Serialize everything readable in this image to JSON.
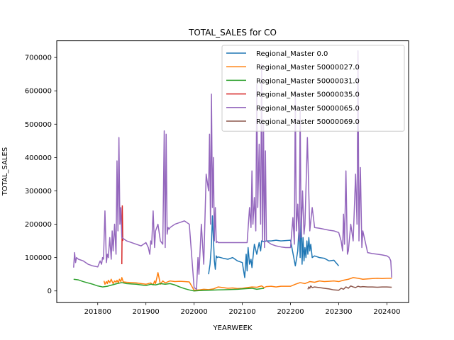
{
  "chart_data": {
    "type": "line",
    "title": "TOTAL_SALES for CO",
    "xlabel": "YEARWEEK",
    "ylabel": "TOTAL_SALES",
    "xlim": [
      201715,
      202445
    ],
    "ylim": [
      -35000,
      750000
    ],
    "xticks": [
      201800,
      201900,
      202000,
      202100,
      202200,
      202300,
      202400
    ],
    "yticks": [
      0,
      100000,
      200000,
      300000,
      400000,
      500000,
      600000,
      700000
    ],
    "grid": false,
    "legend_position": "top-right",
    "series": [
      {
        "name": "Regional_Master 0.0",
        "color": "#1f77b4",
        "x": [
          202030,
          202033,
          202036,
          202038,
          202040,
          202042,
          202044,
          202046,
          202048,
          202050,
          202060,
          202070,
          202080,
          202090,
          202100,
          202105,
          202108,
          202110,
          202112,
          202115,
          202118,
          202120,
          202125,
          202130,
          202135,
          202138,
          202140,
          202145,
          202150,
          202160,
          202170,
          202180,
          202190,
          202200,
          202210,
          202215,
          202218,
          202220,
          202222,
          202224,
          202226,
          202228,
          202230,
          202232,
          202234,
          202236,
          202238,
          202240,
          202242,
          202245,
          202250,
          202260,
          202270,
          202280,
          202290,
          202300
        ],
        "values": [
          50000,
          80000,
          140000,
          225000,
          160000,
          90000,
          65000,
          105000,
          100000,
          102000,
          98000,
          95000,
          100000,
          90000,
          85000,
          40000,
          110000,
          60000,
          130000,
          80000,
          95000,
          70000,
          140000,
          110000,
          145000,
          120000,
          150000,
          148000,
          150000,
          150000,
          152000,
          150000,
          151000,
          152000,
          75000,
          120000,
          200000,
          100000,
          250000,
          80000,
          160000,
          90000,
          130000,
          100000,
          150000,
          110000,
          160000,
          120000,
          140000,
          100000,
          105000,
          100000,
          98000,
          90000,
          92000,
          75000
        ]
      },
      {
        "name": "Regional_Master 50000027.0",
        "color": "#ff7f0e",
        "x": [
          201813,
          201815,
          201818,
          201820,
          201822,
          201825,
          201828,
          201830,
          201832,
          201835,
          201838,
          201840,
          201843,
          201845,
          201848,
          201850,
          201853,
          201860,
          201870,
          201880,
          201890,
          201900,
          201910,
          201915,
          201918,
          201920,
          201925,
          201930,
          201935,
          201940,
          201950,
          201960,
          201970,
          201980,
          201990,
          202000,
          202010,
          202020,
          202030,
          202040,
          202050,
          202060,
          202070,
          202080,
          202090,
          202100,
          202110,
          202120,
          202130,
          202140,
          202145,
          202150,
          202160,
          202170,
          202180,
          202190,
          202200,
          202210,
          202220,
          202230,
          202240,
          202250,
          202260,
          202270,
          202280,
          202290,
          202300,
          202310,
          202320,
          202330,
          202340,
          202350,
          202360,
          202370,
          202380,
          202390,
          202400,
          202410
        ],
        "values": [
          30000,
          20000,
          28000,
          22000,
          32000,
          25000,
          35000,
          28000,
          22000,
          30000,
          26000,
          32000,
          24000,
          35000,
          28000,
          40000,
          27000,
          26000,
          25000,
          24000,
          22000,
          20000,
          24000,
          18000,
          30000,
          22000,
          55000,
          20000,
          30000,
          24000,
          30000,
          28000,
          29000,
          28000,
          27000,
          2000,
          3000,
          5000,
          4000,
          6000,
          12000,
          10000,
          8000,
          9000,
          7000,
          8000,
          10000,
          12000,
          11000,
          15000,
          10000,
          13000,
          14000,
          12000,
          14000,
          14000,
          14000,
          20000,
          25000,
          22000,
          28000,
          26000,
          30000,
          28000,
          29000,
          30000,
          28000,
          32000,
          35000,
          40000,
          38000,
          35000,
          36000,
          37000,
          38000,
          37000,
          38000,
          38000
        ]
      },
      {
        "name": "Regional_Master 50000031.0",
        "color": "#2ca02c",
        "x": [
          201750,
          201760,
          201770,
          201780,
          201790,
          201800,
          201810,
          201820,
          201830,
          201840,
          201850,
          201860,
          201870,
          201880,
          201890,
          201900,
          201910,
          201920,
          201930,
          201940,
          201950,
          201960,
          201970,
          201980,
          201990,
          202000,
          202010,
          202020,
          202030,
          202040,
          202050,
          202060,
          202070,
          202080,
          202090,
          202100,
          202110,
          202120,
          202130,
          202140,
          202145
        ],
        "values": [
          35000,
          33000,
          28000,
          24000,
          20000,
          15000,
          12000,
          14000,
          18000,
          22000,
          25000,
          22000,
          21000,
          20000,
          18000,
          16000,
          20000,
          18000,
          22000,
          20000,
          22000,
          18000,
          12000,
          7000,
          3000,
          0,
          1000,
          1500,
          2000,
          2500,
          3000,
          3500,
          4000,
          4500,
          5000,
          6000,
          7000,
          8000,
          5000,
          7000,
          8000
        ]
      },
      {
        "name": "Regional_Master 50000035.0",
        "color": "#d62728",
        "x": [
          201850,
          201851,
          201852
        ],
        "values": [
          80000,
          255000,
          150000
        ]
      },
      {
        "name": "Regional_Master 50000065.0",
        "color": "#9467bd",
        "x": [
          201750,
          201752,
          201754,
          201756,
          201760,
          201770,
          201780,
          201790,
          201800,
          201805,
          201808,
          201810,
          201812,
          201815,
          201818,
          201820,
          201822,
          201825,
          201828,
          201830,
          201832,
          201835,
          201838,
          201840,
          201842,
          201844,
          201846,
          201848,
          201850,
          201855,
          201860,
          201870,
          201880,
          201890,
          201900,
          201905,
          201908,
          201910,
          201912,
          201915,
          201918,
          201920,
          201925,
          201930,
          201935,
          201938,
          201940,
          201942,
          201944,
          201946,
          201948,
          201950,
          201960,
          201970,
          201980,
          201990,
          202000,
          202005,
          202008,
          202010,
          202015,
          202020,
          202025,
          202030,
          202032,
          202034,
          202036,
          202038,
          202040,
          202042,
          202044,
          202046,
          202048,
          202050,
          202060,
          202070,
          202080,
          202090,
          202100,
          202110,
          202115,
          202118,
          202120,
          202122,
          202125,
          202128,
          202130,
          202132,
          202135,
          202138,
          202140,
          202142,
          202144,
          202146,
          202148,
          202150,
          202160,
          202170,
          202180,
          202190,
          202200,
          202205,
          202208,
          202210,
          202212,
          202215,
          202218,
          202220,
          202222,
          202225,
          202228,
          202230,
          202235,
          202240,
          202245,
          202250,
          202260,
          202270,
          202280,
          202290,
          202300,
          202305,
          202308,
          202310,
          202312,
          202315,
          202318,
          202320,
          202325,
          202330,
          202335,
          202338,
          202340,
          202342,
          202345,
          202348,
          202350,
          202360,
          202370,
          202380,
          202390,
          202400,
          202405,
          202408,
          202410
        ],
        "values": [
          70000,
          115000,
          85000,
          100000,
          95000,
          90000,
          80000,
          75000,
          72000,
          90000,
          80000,
          100000,
          95000,
          240000,
          85000,
          110000,
          100000,
          160000,
          95000,
          180000,
          120000,
          200000,
          110000,
          390000,
          180000,
          460000,
          200000,
          250000,
          160000,
          155000,
          150000,
          145000,
          140000,
          135000,
          145000,
          130000,
          110000,
          150000,
          140000,
          240000,
          130000,
          180000,
          200000,
          150000,
          140000,
          480000,
          130000,
          470000,
          170000,
          190000,
          185000,
          190000,
          200000,
          205000,
          210000,
          200000,
          10000,
          5000,
          100000,
          50000,
          200000,
          80000,
          350000,
          300000,
          470000,
          200000,
          590000,
          250000,
          400000,
          150000,
          250000,
          145000,
          148000,
          145000,
          145000,
          145000,
          145000,
          145000,
          145000,
          145000,
          250000,
          190000,
          360000,
          200000,
          280000,
          180000,
          620000,
          250000,
          440000,
          200000,
          680000,
          150000,
          500000,
          130000,
          420000,
          150000,
          140000,
          135000,
          132000,
          130000,
          130000,
          220000,
          140000,
          600000,
          180000,
          260000,
          150000,
          550000,
          160000,
          300000,
          170000,
          200000,
          460000,
          180000,
          250000,
          190000,
          188000,
          185000,
          182000,
          180000,
          175000,
          150000,
          120000,
          230000,
          140000,
          360000,
          110000,
          120000,
          200000,
          150000,
          350000,
          200000,
          720000,
          150000,
          370000,
          130000,
          180000,
          115000,
          112000,
          110000,
          108000,
          105000,
          100000,
          90000,
          40000
        ]
      },
      {
        "name": "Regional_Master 50000069.0",
        "color": "#8c564b",
        "x": [
          202236,
          202238,
          202240,
          202242,
          202245,
          202250,
          202260,
          202270,
          202280,
          202290,
          202300,
          202305,
          202310,
          202315,
          202320,
          202325,
          202330,
          202335,
          202340,
          202345,
          202350,
          202360,
          202370,
          202380,
          202390,
          202400,
          202410
        ],
        "values": [
          5000,
          12000,
          8000,
          15000,
          10000,
          12000,
          10000,
          8000,
          6000,
          3000,
          2000,
          8000,
          5000,
          12000,
          8000,
          15000,
          12000,
          10000,
          14000,
          12000,
          13000,
          12000,
          12000,
          11000,
          12000,
          12000,
          11000
        ]
      }
    ]
  }
}
